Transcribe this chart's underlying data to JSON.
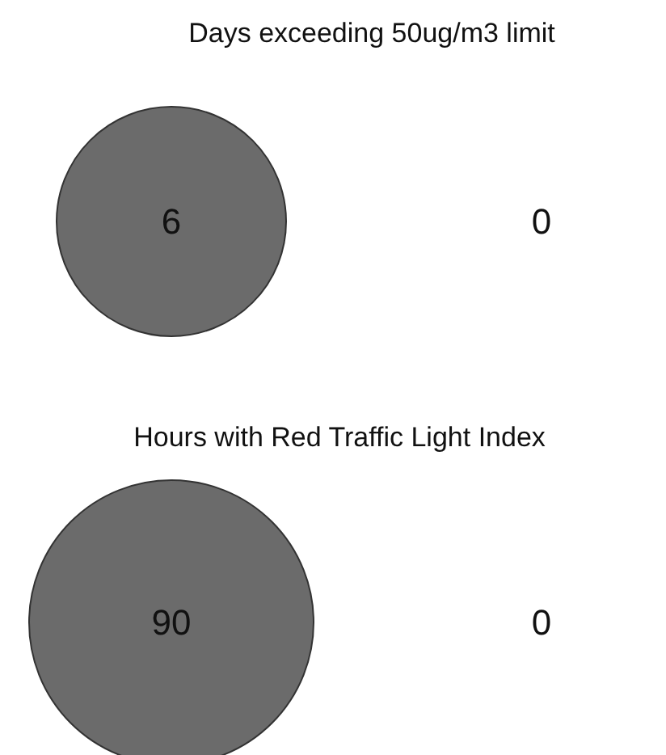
{
  "chart_data": [
    {
      "type": "other",
      "title": "Days exceeding 50ug/m3 limit",
      "categories": [
        null,
        null
      ],
      "values": [
        6,
        0
      ],
      "colors": [
        "#6b6b6b",
        "#6b6b6b"
      ],
      "data_labels": true
    },
    {
      "type": "other",
      "title": "Hours with Red Traffic Light Index",
      "categories": [
        null,
        null
      ],
      "values": [
        90,
        0
      ],
      "colors": [
        "#6b6b6b",
        "#6b6b6b"
      ],
      "data_labels": true
    }
  ]
}
